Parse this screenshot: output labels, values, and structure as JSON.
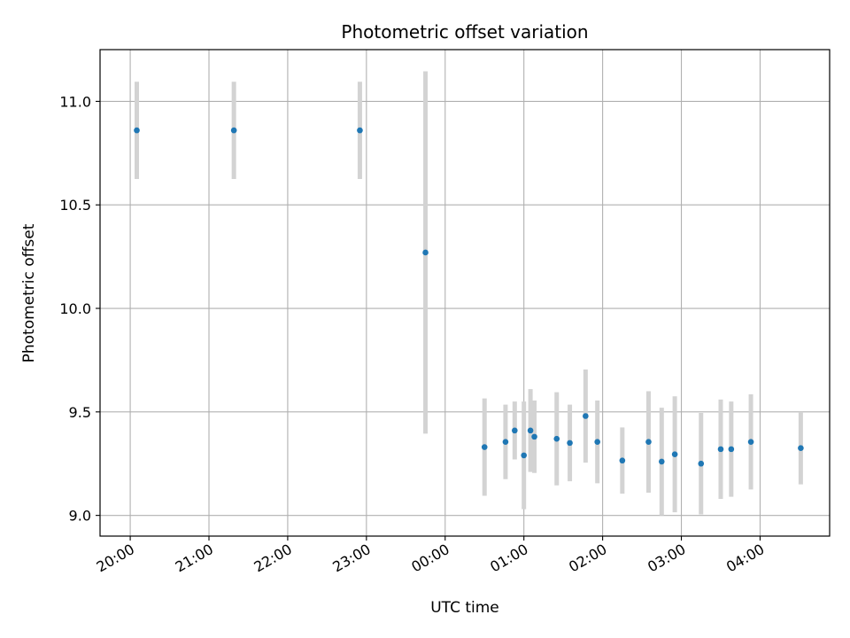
{
  "chart_data": {
    "type": "scatter",
    "title": "Photometric offset variation",
    "xlabel": "UTC time",
    "ylabel": "Photometric offset",
    "x_tick_labels": [
      "20:00",
      "21:00",
      "22:00",
      "23:00",
      "00:00",
      "01:00",
      "02:00",
      "03:00",
      "04:00"
    ],
    "y_tick_labels": [
      "9.0",
      "9.5",
      "10.0",
      "10.5",
      "11.0"
    ],
    "y_ticks": [
      9.0,
      9.5,
      10.0,
      10.5,
      11.0
    ],
    "xlim": [
      "19:37",
      "04:53"
    ],
    "ylim": [
      8.9,
      11.25
    ],
    "grid": true,
    "colors": {
      "point": "#1f77b4",
      "errorbar": "#d3d3d3",
      "grid": "#b0b0b0"
    },
    "series": [
      {
        "x": [
          "20:05",
          "21:19",
          "22:55",
          "23:45",
          "00:30",
          "00:46",
          "00:53",
          "01:00",
          "01:05",
          "01:08",
          "01:25",
          "01:35",
          "01:47",
          "01:56",
          "02:15",
          "02:35",
          "02:45",
          "02:55",
          "03:15",
          "03:30",
          "03:38",
          "03:53",
          "04:31"
        ],
        "y": [
          10.86,
          10.86,
          10.86,
          10.27,
          9.33,
          9.355,
          9.41,
          9.29,
          9.41,
          9.38,
          9.37,
          9.35,
          9.48,
          9.355,
          9.265,
          9.355,
          9.26,
          9.295,
          9.25,
          9.32,
          9.32,
          9.355,
          9.325
        ],
        "yerr": [
          0.235,
          0.235,
          0.235,
          0.875,
          0.235,
          0.18,
          0.14,
          0.26,
          0.2,
          0.175,
          0.225,
          0.185,
          0.225,
          0.2,
          0.16,
          0.245,
          0.26,
          0.28,
          0.245,
          0.24,
          0.23,
          0.23,
          0.175
        ]
      }
    ]
  }
}
